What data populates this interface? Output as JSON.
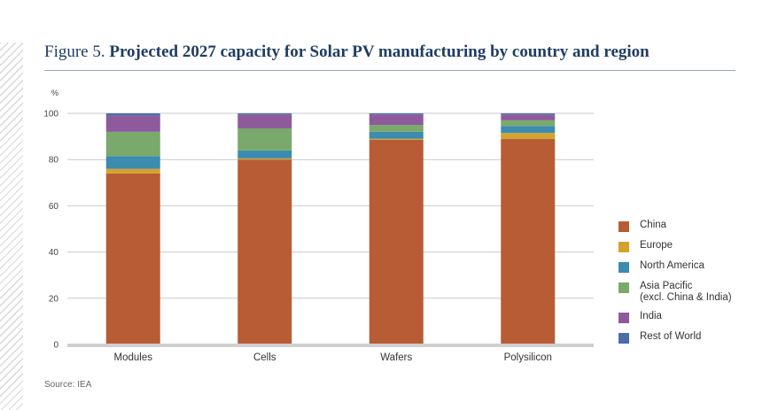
{
  "header": {
    "figure_label": "Figure 5.",
    "title": "Projected 2027 capacity for Solar PV manufacturing by country and region"
  },
  "source": "Source: IEA",
  "chart_data": {
    "type": "bar",
    "stacked": true,
    "ylabel": "%",
    "ylim": [
      0,
      100
    ],
    "yticks": [
      0,
      20,
      40,
      60,
      80,
      100
    ],
    "categories": [
      "Modules",
      "Cells",
      "Wafers",
      "Polysilicon"
    ],
    "series": [
      {
        "name": "China",
        "color": "#b85c35",
        "values": [
          74,
          80,
          88.5,
          89
        ]
      },
      {
        "name": "Europe",
        "color": "#d4a32e",
        "values": [
          2,
          0.5,
          0.5,
          2.5
        ]
      },
      {
        "name": "North America",
        "color": "#3c8bb0",
        "values": [
          5.5,
          3.5,
          3,
          3
        ]
      },
      {
        "name": "Asia Pacific\n(excl. China & India)",
        "color": "#79a96b",
        "values": [
          10.5,
          9.5,
          3,
          2.5
        ]
      },
      {
        "name": "India",
        "color": "#8e5a9b",
        "values": [
          7,
          6,
          4.5,
          2.5
        ]
      },
      {
        "name": "Rest of World",
        "color": "#4a6ea8",
        "values": [
          1,
          0.5,
          0.5,
          0.5
        ]
      }
    ],
    "legend_position": "right"
  }
}
